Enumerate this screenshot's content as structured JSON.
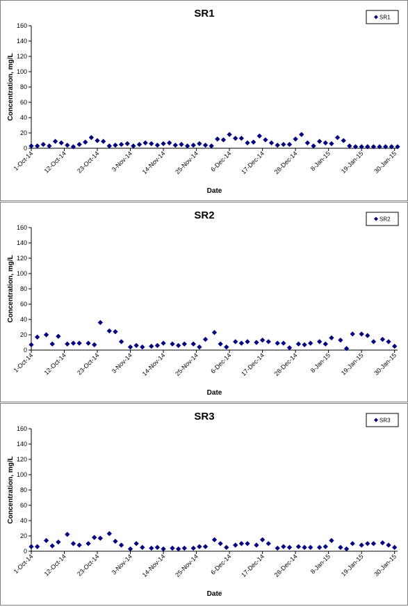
{
  "chart_data": [
    {
      "type": "scatter",
      "title": "SR1",
      "xlabel": "Date",
      "ylabel": "Concentration, mg/L",
      "ylim": [
        0,
        160
      ],
      "yticks": [
        0,
        20,
        40,
        60,
        80,
        100,
        120,
        140,
        160
      ],
      "xlim": [
        "2014-10-01",
        "2015-01-31"
      ],
      "xticks": [
        "1-Oct-14",
        "12-Oct-14",
        "23-Oct-14",
        "3-Nov-14",
        "14-Nov-14",
        "25-Nov-14",
        "6-Dec-14",
        "17-Dec-14",
        "28-Dec-14",
        "8-Jan-15",
        "19-Jan-15",
        "30-Jan-15"
      ],
      "grid": false,
      "legend_position": "top-right",
      "marker_color": "#000080",
      "series": [
        {
          "name": "SR1",
          "x": [
            "2014-10-01",
            "2014-10-03",
            "2014-10-05",
            "2014-10-07",
            "2014-10-09",
            "2014-10-11",
            "2014-10-13",
            "2014-10-15",
            "2014-10-17",
            "2014-10-19",
            "2014-10-21",
            "2014-10-23",
            "2014-10-25",
            "2014-10-27",
            "2014-10-29",
            "2014-10-31",
            "2014-11-02",
            "2014-11-04",
            "2014-11-06",
            "2014-11-08",
            "2014-11-10",
            "2014-11-12",
            "2014-11-14",
            "2014-11-16",
            "2014-11-18",
            "2014-11-20",
            "2014-11-22",
            "2014-11-24",
            "2014-11-26",
            "2014-11-28",
            "2014-11-30",
            "2014-12-02",
            "2014-12-04",
            "2014-12-06",
            "2014-12-08",
            "2014-12-10",
            "2014-12-12",
            "2014-12-14",
            "2014-12-16",
            "2014-12-18",
            "2014-12-20",
            "2014-12-22",
            "2014-12-24",
            "2014-12-26",
            "2014-12-28",
            "2014-12-30",
            "2015-01-01",
            "2015-01-03",
            "2015-01-05",
            "2015-01-07",
            "2015-01-09",
            "2015-01-11",
            "2015-01-13",
            "2015-01-15",
            "2015-01-17",
            "2015-01-19",
            "2015-01-21",
            "2015-01-23",
            "2015-01-25",
            "2015-01-27",
            "2015-01-29",
            "2015-01-31"
          ],
          "y": [
            3,
            3,
            5,
            3,
            9,
            7,
            4,
            2,
            5,
            8,
            14,
            10,
            9,
            3,
            4,
            5,
            6,
            3,
            5,
            7,
            6,
            4,
            6,
            7,
            4,
            5,
            3,
            4,
            6,
            4,
            3,
            12,
            11,
            18,
            13,
            13,
            7,
            8,
            16,
            11,
            7,
            4,
            5,
            5,
            12,
            18,
            7,
            3,
            9,
            7,
            6,
            14,
            10,
            3,
            2,
            2,
            2,
            2,
            2,
            2,
            2,
            2
          ]
        }
      ]
    },
    {
      "type": "scatter",
      "title": "SR2",
      "xlabel": "Date",
      "ylabel": "Concentration, mg/L",
      "ylim": [
        0,
        160
      ],
      "yticks": [
        0,
        20,
        40,
        60,
        80,
        100,
        120,
        140,
        160
      ],
      "xlim": [
        "2014-10-01",
        "2015-01-31"
      ],
      "xticks": [
        "1-Oct-14",
        "12-Oct-14",
        "23-Oct-14",
        "3-Nov-14",
        "14-Nov-14",
        "25-Nov-14",
        "6-Dec-14",
        "17-Dec-14",
        "28-Dec-14",
        "8-Jan-15",
        "19-Jan-15",
        "30-Jan-15"
      ],
      "grid": false,
      "legend_position": "top-right",
      "marker_color": "#000080",
      "series": [
        {
          "name": "SR2",
          "x": [
            "2014-10-01",
            "2014-10-03",
            "2014-10-06",
            "2014-10-08",
            "2014-10-10",
            "2014-10-13",
            "2014-10-15",
            "2014-10-17",
            "2014-10-20",
            "2014-10-22",
            "2014-10-24",
            "2014-10-27",
            "2014-10-29",
            "2014-10-31",
            "2014-11-03",
            "2014-11-05",
            "2014-11-07",
            "2014-11-10",
            "2014-11-12",
            "2014-11-14",
            "2014-11-17",
            "2014-11-19",
            "2014-11-21",
            "2014-11-24",
            "2014-11-26",
            "2014-11-28",
            "2014-12-01",
            "2014-12-03",
            "2014-12-05",
            "2014-12-08",
            "2014-12-10",
            "2014-12-12",
            "2014-12-15",
            "2014-12-17",
            "2014-12-19",
            "2014-12-22",
            "2014-12-24",
            "2014-12-26",
            "2014-12-29",
            "2014-12-31",
            "2015-01-02",
            "2015-01-05",
            "2015-01-07",
            "2015-01-09",
            "2015-01-12",
            "2015-01-14",
            "2015-01-16",
            "2015-01-19",
            "2015-01-21",
            "2015-01-23",
            "2015-01-26",
            "2015-01-28",
            "2015-01-30"
          ],
          "y": [
            7,
            17,
            20,
            8,
            18,
            8,
            9,
            9,
            9,
            7,
            36,
            25,
            24,
            11,
            4,
            6,
            4,
            5,
            6,
            9,
            8,
            6,
            8,
            8,
            4,
            14,
            23,
            8,
            4,
            11,
            9,
            11,
            10,
            13,
            11,
            9,
            9,
            3,
            8,
            7,
            9,
            11,
            8,
            16,
            13,
            2,
            21,
            21,
            19,
            11,
            14,
            11,
            5
          ]
        }
      ]
    },
    {
      "type": "scatter",
      "title": "SR3",
      "xlabel": "Date",
      "ylabel": "Concentration, mg/L",
      "ylim": [
        0,
        160
      ],
      "yticks": [
        0,
        20,
        40,
        60,
        80,
        100,
        120,
        140,
        160
      ],
      "xlim": [
        "2014-10-01",
        "2015-01-31"
      ],
      "xticks": [
        "1-Oct-14",
        "12-Oct-14",
        "23-Oct-14",
        "3-Nov-14",
        "14-Nov-14",
        "25-Nov-14",
        "6-Dec-14",
        "17-Dec-14",
        "28-Dec-14",
        "8-Jan-15",
        "19-Jan-15",
        "30-Jan-15"
      ],
      "grid": false,
      "legend_position": "top-right",
      "marker_color": "#000080",
      "series": [
        {
          "name": "SR3",
          "x": [
            "2014-10-01",
            "2014-10-03",
            "2014-10-06",
            "2014-10-08",
            "2014-10-10",
            "2014-10-13",
            "2014-10-15",
            "2014-10-17",
            "2014-10-20",
            "2014-10-22",
            "2014-10-24",
            "2014-10-27",
            "2014-10-29",
            "2014-10-31",
            "2014-11-03",
            "2014-11-05",
            "2014-11-07",
            "2014-11-10",
            "2014-11-12",
            "2014-11-14",
            "2014-11-17",
            "2014-11-19",
            "2014-11-21",
            "2014-11-24",
            "2014-11-26",
            "2014-11-28",
            "2014-12-01",
            "2014-12-03",
            "2014-12-05",
            "2014-12-08",
            "2014-12-10",
            "2014-12-12",
            "2014-12-15",
            "2014-12-17",
            "2014-12-19",
            "2014-12-22",
            "2014-12-24",
            "2014-12-26",
            "2014-12-29",
            "2014-12-31",
            "2015-01-02",
            "2015-01-05",
            "2015-01-07",
            "2015-01-09",
            "2015-01-12",
            "2015-01-14",
            "2015-01-16",
            "2015-01-19",
            "2015-01-21",
            "2015-01-23",
            "2015-01-26",
            "2015-01-28",
            "2015-01-30"
          ],
          "y": [
            6,
            6,
            14,
            7,
            12,
            22,
            10,
            8,
            10,
            18,
            17,
            23,
            13,
            8,
            3,
            10,
            5,
            4,
            5,
            3,
            4,
            3,
            4,
            4,
            6,
            6,
            15,
            10,
            5,
            8,
            10,
            10,
            8,
            15,
            10,
            4,
            6,
            5,
            6,
            5,
            5,
            5,
            6,
            14,
            5,
            3,
            10,
            8,
            10,
            10,
            11,
            8,
            5
          ]
        }
      ]
    }
  ]
}
